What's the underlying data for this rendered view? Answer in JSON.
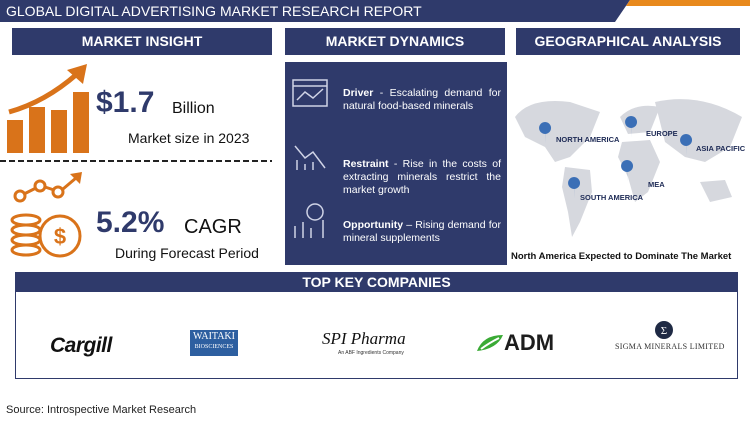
{
  "header": {
    "title": "GLOBAL DIGITAL ADVERTISING MARKET RESEARCH REPORT"
  },
  "insight": {
    "heading": "MARKET INSIGHT",
    "market_size": "$1.7",
    "market_size_unit": "Billion",
    "market_size_caption": "Market size in 2023",
    "cagr": "5.2%",
    "cagr_label": "CAGR",
    "cagr_caption": "During Forecast Period"
  },
  "dynamics": {
    "heading": "MARKET DYNAMICS",
    "items": [
      {
        "label": "Driver",
        "text": "- Escalating demand for natural food-based minerals"
      },
      {
        "label": "Restraint",
        "text": "- Rise in the costs of extracting minerals restrict the market growth"
      },
      {
        "label": "Opportunity",
        "text": "– Rising demand for mineral supplements"
      }
    ]
  },
  "geography": {
    "heading": "GEOGRAPHICAL ANALYSIS",
    "regions": [
      "NORTH AMERICA",
      "EUROPE",
      "ASIA PACIFIC",
      "MEA",
      "SOUTH AMERICA"
    ],
    "caption": "North America Expected to Dominate The Market"
  },
  "companies": {
    "heading": "TOP KEY COMPANIES",
    "logos": [
      {
        "name": "Cargill"
      },
      {
        "name": "WAITAKI",
        "sub": "BIOSCIENCES"
      },
      {
        "name": "SPI Pharma",
        "sub": "An ABF Ingredients Company"
      },
      {
        "name": "ADM"
      },
      {
        "name": "SIGMA MINERALS LIMITED"
      }
    ]
  },
  "source": "Source: Introspective Market Research"
}
